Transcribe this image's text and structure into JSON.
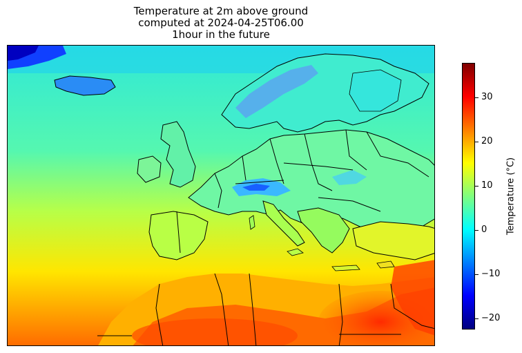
{
  "title": {
    "line1": "Temperature at 2m above ground",
    "line2": "computed at 2024-04-25T06.00",
    "line3": "1hour in the future"
  },
  "colorbar": {
    "label": "Temperature (°C)",
    "min": -22.5,
    "max": 37.8,
    "ticks": [
      30,
      20,
      10,
      0,
      -10,
      -20
    ],
    "colormap": "jet"
  },
  "map": {
    "variable": "2m temperature",
    "region": "Europe / North Africa",
    "border_color": "#000000"
  }
}
